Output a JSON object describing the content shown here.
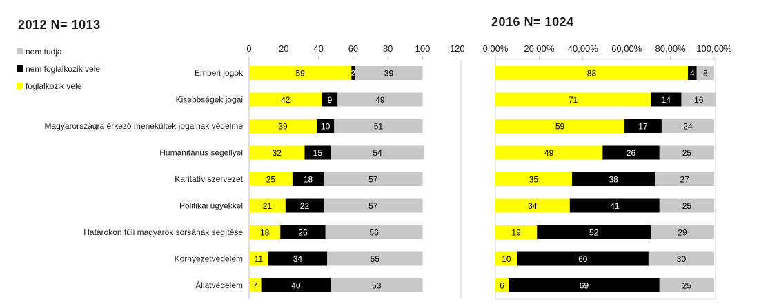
{
  "chart_data": [
    {
      "type": "bar",
      "stacked": true,
      "orientation": "horizontal",
      "title": "2012 N= 1013",
      "categories": [
        "Emberi jogok",
        "Kisebbségek jogai",
        "Magyarországra érkező menekültek jogainak védelme",
        "Humanitárius segéllyel",
        "Karitatív szervezet",
        "Politikai ügyekkel",
        "Határokon túli magyarok sorsának segítése",
        "Környezetvédelem",
        "Állatvédelem"
      ],
      "series": [
        {
          "name": "foglalkozik vele",
          "color": "#ffff00",
          "values": [
            59,
            42,
            39,
            32,
            25,
            21,
            18,
            11,
            7
          ]
        },
        {
          "name": "nem foglalkozik vele",
          "color": "#000000",
          "values": [
            2,
            9,
            10,
            15,
            18,
            22,
            26,
            34,
            40
          ]
        },
        {
          "name": "nem tudja",
          "color": "#c8c8c8",
          "values": [
            39,
            49,
            51,
            54,
            57,
            57,
            56,
            55,
            53
          ]
        }
      ],
      "xlim": [
        0,
        120
      ],
      "ticks": [
        "0",
        "20",
        "40",
        "60",
        "80",
        "100",
        "120"
      ],
      "legend": "top-left"
    },
    {
      "type": "bar",
      "stacked": true,
      "orientation": "horizontal",
      "title": "2016 N= 1024",
      "series": [
        {
          "name": "foglalkozik vele",
          "color": "#ffff00",
          "values": [
            88,
            71,
            59,
            49,
            35,
            34,
            19,
            10,
            6
          ]
        },
        {
          "name": "nem foglalkozik vele",
          "color": "#000000",
          "values": [
            4,
            14,
            17,
            26,
            38,
            41,
            52,
            60,
            69
          ]
        },
        {
          "name": "nem tudja",
          "color": "#c8c8c8",
          "values": [
            8,
            16,
            24,
            25,
            27,
            25,
            29,
            30,
            25
          ]
        }
      ],
      "xlim": [
        0,
        100
      ],
      "ticks": [
        "0,00%",
        "20,00%",
        "40,00%",
        "60,00%",
        "80,00%",
        "100,00%"
      ]
    }
  ]
}
